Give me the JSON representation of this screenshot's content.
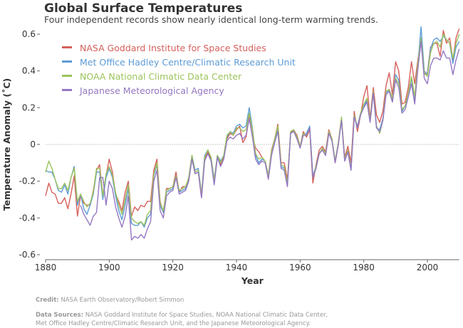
{
  "title": "Global Surface Temperatures",
  "subtitle": "Four independent records show nearly identical long-term warming trends.",
  "credit": {
    "label": "Credit:",
    "text": "NASA Earth Observatory/Robert Simmon"
  },
  "sources": {
    "label": "Data Sources:",
    "line1": "NASA Goddard Institute for Space Studies, NOAA National Climatic Data Center,",
    "line2": "Met Office Hadley Centre/Climatic Research Unit, and the Japanese Meteorological Agency."
  },
  "chart_data": {
    "type": "line",
    "xlabel": "Year",
    "ylabel": "Temperature Anomaly (˚C)",
    "xlim": [
      1880,
      2010
    ],
    "ylim": [
      -0.6,
      0.6
    ],
    "x_ticks": [
      "1880",
      "1900",
      "1920",
      "1940",
      "1960",
      "1980",
      "2000"
    ],
    "y_ticks": [
      "0.6",
      "0.4",
      "0.2",
      "0",
      "-0.2",
      "-0.4",
      "-0.6"
    ],
    "zero_line": true,
    "legend_position": "top-left",
    "x_start": 1880,
    "series": [
      {
        "name": "NASA Goddard Institute for Space Studies",
        "color": "#d6605c",
        "values": [
          -0.28,
          -0.21,
          -0.26,
          -0.27,
          -0.32,
          -0.32,
          -0.29,
          -0.35,
          -0.27,
          -0.17,
          -0.39,
          -0.28,
          -0.32,
          -0.33,
          -0.33,
          -0.25,
          -0.14,
          -0.11,
          -0.28,
          -0.17,
          -0.08,
          -0.15,
          -0.27,
          -0.31,
          -0.36,
          -0.26,
          -0.2,
          -0.39,
          -0.34,
          -0.36,
          -0.33,
          -0.34,
          -0.31,
          -0.31,
          -0.14,
          -0.08,
          -0.31,
          -0.37,
          -0.24,
          -0.24,
          -0.23,
          -0.15,
          -0.26,
          -0.23,
          -0.23,
          -0.19,
          -0.06,
          -0.16,
          -0.15,
          -0.29,
          -0.08,
          -0.04,
          -0.08,
          -0.21,
          -0.06,
          -0.11,
          -0.07,
          0.03,
          0.06,
          0.05,
          0.08,
          0.1,
          0.01,
          0.04,
          0.15,
          0.04,
          -0.02,
          -0.04,
          -0.07,
          -0.09,
          -0.17,
          -0.03,
          0.03,
          0.11,
          -0.1,
          -0.1,
          -0.19,
          0.06,
          0.08,
          0.05,
          -0.01,
          0.07,
          0.04,
          0.08,
          -0.21,
          -0.11,
          -0.03,
          -0.01,
          -0.04,
          0.08,
          0.03,
          -0.1,
          0.0,
          0.14,
          -0.07,
          -0.01,
          -0.1,
          0.18,
          0.07,
          0.16,
          0.26,
          0.32,
          0.14,
          0.31,
          0.16,
          0.12,
          0.18,
          0.32,
          0.39,
          0.27,
          0.45,
          0.4,
          0.22,
          0.23,
          0.31,
          0.45,
          0.33,
          0.46,
          0.57,
          0.38,
          0.39,
          0.53,
          0.55,
          0.55,
          0.48,
          0.62,
          0.55,
          0.58,
          0.46,
          0.58,
          0.63
        ]
      },
      {
        "name": "Met Office Hadley Centre/Climatic Research Unit",
        "color": "#5c9bd6",
        "values": [
          -0.14,
          -0.15,
          -0.15,
          -0.19,
          -0.25,
          -0.26,
          -0.22,
          -0.27,
          -0.18,
          -0.12,
          -0.33,
          -0.27,
          -0.35,
          -0.38,
          -0.33,
          -0.27,
          -0.15,
          -0.15,
          -0.3,
          -0.18,
          -0.13,
          -0.18,
          -0.28,
          -0.36,
          -0.41,
          -0.33,
          -0.24,
          -0.43,
          -0.44,
          -0.44,
          -0.42,
          -0.45,
          -0.4,
          -0.38,
          -0.17,
          -0.11,
          -0.33,
          -0.37,
          -0.26,
          -0.25,
          -0.24,
          -0.17,
          -0.26,
          -0.25,
          -0.24,
          -0.18,
          -0.06,
          -0.14,
          -0.13,
          -0.27,
          -0.06,
          -0.03,
          -0.07,
          -0.19,
          -0.06,
          -0.09,
          -0.06,
          0.04,
          0.07,
          0.06,
          0.1,
          0.11,
          0.09,
          0.1,
          0.2,
          0.09,
          -0.06,
          -0.1,
          -0.08,
          -0.09,
          -0.17,
          -0.04,
          0.02,
          0.08,
          -0.12,
          -0.13,
          -0.22,
          0.07,
          0.08,
          0.04,
          -0.01,
          0.05,
          0.06,
          0.1,
          -0.17,
          -0.12,
          -0.05,
          -0.03,
          -0.05,
          0.06,
          0.03,
          -0.09,
          0.01,
          0.14,
          -0.09,
          -0.04,
          -0.14,
          0.15,
          0.1,
          0.17,
          0.21,
          0.24,
          0.13,
          0.28,
          0.09,
          0.08,
          0.14,
          0.28,
          0.3,
          0.24,
          0.38,
          0.35,
          0.18,
          0.21,
          0.27,
          0.36,
          0.23,
          0.43,
          0.64,
          0.4,
          0.38,
          0.52,
          0.57,
          0.58,
          0.56,
          0.59,
          0.57,
          0.55,
          0.44,
          0.53,
          0.56
        ]
      },
      {
        "name": "NOAA National Climatic Data Center",
        "color": "#9cc35c",
        "values": [
          -0.15,
          -0.09,
          -0.13,
          -0.19,
          -0.24,
          -0.24,
          -0.21,
          -0.25,
          -0.18,
          -0.13,
          -0.31,
          -0.27,
          -0.31,
          -0.34,
          -0.32,
          -0.26,
          -0.13,
          -0.13,
          -0.28,
          -0.16,
          -0.12,
          -0.17,
          -0.26,
          -0.33,
          -0.38,
          -0.3,
          -0.22,
          -0.4,
          -0.42,
          -0.43,
          -0.42,
          -0.44,
          -0.38,
          -0.36,
          -0.16,
          -0.1,
          -0.32,
          -0.36,
          -0.25,
          -0.24,
          -0.23,
          -0.17,
          -0.25,
          -0.24,
          -0.23,
          -0.18,
          -0.06,
          -0.15,
          -0.14,
          -0.27,
          -0.07,
          -0.03,
          -0.07,
          -0.2,
          -0.06,
          -0.1,
          -0.06,
          0.05,
          0.07,
          0.05,
          0.09,
          0.09,
          0.07,
          0.08,
          0.17,
          0.08,
          -0.05,
          -0.08,
          -0.07,
          -0.09,
          -0.17,
          -0.04,
          0.03,
          0.1,
          -0.11,
          -0.12,
          -0.21,
          0.07,
          0.08,
          0.04,
          -0.01,
          0.06,
          0.05,
          0.09,
          -0.18,
          -0.12,
          -0.05,
          -0.02,
          -0.05,
          0.07,
          0.03,
          -0.09,
          0.01,
          0.15,
          -0.08,
          -0.03,
          -0.13,
          0.16,
          0.09,
          0.17,
          0.22,
          0.25,
          0.13,
          0.29,
          0.1,
          0.06,
          0.13,
          0.29,
          0.3,
          0.25,
          0.36,
          0.33,
          0.19,
          0.21,
          0.28,
          0.37,
          0.26,
          0.44,
          0.58,
          0.39,
          0.37,
          0.5,
          0.55,
          0.56,
          0.53,
          0.6,
          0.57,
          0.55,
          0.47,
          0.55,
          0.6
        ]
      },
      {
        "name": "Japanese Meteorological Agency",
        "color": "#9477c2",
        "values": [
          null,
          null,
          null,
          null,
          null,
          null,
          null,
          null,
          null,
          null,
          null,
          -0.33,
          -0.38,
          -0.41,
          -0.44,
          -0.39,
          -0.37,
          -0.18,
          -0.18,
          -0.33,
          -0.2,
          -0.24,
          -0.34,
          -0.4,
          -0.45,
          -0.39,
          -0.28,
          -0.52,
          -0.5,
          -0.51,
          -0.49,
          -0.51,
          -0.46,
          -0.42,
          -0.2,
          -0.14,
          -0.36,
          -0.4,
          -0.28,
          -0.26,
          -0.25,
          -0.18,
          -0.27,
          -0.26,
          -0.25,
          -0.2,
          -0.08,
          -0.16,
          -0.15,
          -0.29,
          -0.09,
          -0.05,
          -0.09,
          -0.22,
          -0.07,
          -0.12,
          -0.08,
          0.02,
          0.04,
          0.03,
          0.05,
          0.06,
          0.03,
          0.05,
          0.14,
          0.04,
          -0.08,
          -0.11,
          -0.09,
          -0.1,
          -0.19,
          -0.06,
          0.01,
          0.07,
          -0.13,
          -0.14,
          -0.23,
          0.06,
          0.07,
          0.03,
          -0.02,
          0.05,
          0.05,
          0.09,
          -0.18,
          -0.13,
          -0.05,
          -0.03,
          -0.06,
          0.06,
          0.02,
          -0.1,
          0.0,
          0.13,
          -0.09,
          -0.04,
          -0.14,
          0.15,
          0.09,
          0.16,
          0.2,
          0.23,
          0.12,
          0.28,
          0.09,
          0.07,
          0.13,
          0.27,
          0.29,
          0.23,
          0.35,
          0.31,
          0.17,
          0.19,
          0.26,
          0.33,
          0.22,
          0.41,
          0.56,
          0.36,
          0.33,
          0.43,
          0.47,
          0.47,
          0.46,
          0.51,
          0.47,
          0.47,
          0.38,
          0.46,
          0.52
        ]
      }
    ]
  }
}
